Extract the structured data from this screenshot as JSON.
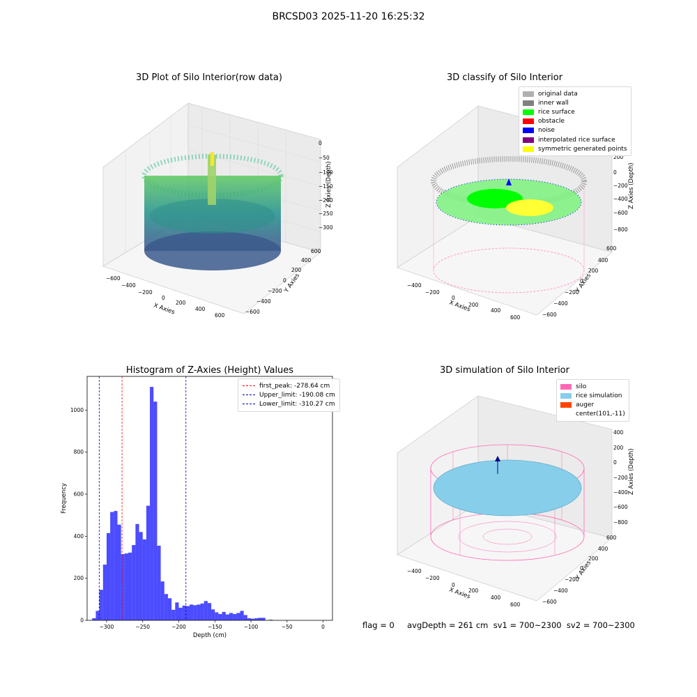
{
  "suptitle": "BRCSD03 2025-11-20 16:25:32",
  "plot1": {
    "title": "3D Plot of Silo Interior(row data)",
    "xlabel": "X Axies",
    "ylabel": "Y Axies",
    "zlabel": "Z Axies (Depth)",
    "xticks": [
      "−600",
      "−400",
      "−200",
      "0",
      "200",
      "400",
      "600"
    ],
    "yticks": [
      "−600",
      "−400",
      "−200",
      "0",
      "200",
      "400",
      "600"
    ],
    "zticks": [
      "0",
      "−50",
      "−100",
      "−150",
      "−200",
      "−250",
      "−300"
    ]
  },
  "plot2": {
    "title": "3D classify of Silo Interior",
    "xlabel": "X Axies",
    "ylabel": "Y Axies",
    "zlabel": "Z Axies (Depth)",
    "xticks": [
      "−400",
      "−200",
      "0",
      "200",
      "400",
      "600"
    ],
    "yticks": [
      "−600",
      "−400",
      "−200",
      "0",
      "200",
      "400",
      "600"
    ],
    "zticks": [
      "200",
      "0",
      "−200",
      "−400",
      "−600",
      "−800"
    ],
    "legend": [
      {
        "label": "original data",
        "color": "#b0b0b0"
      },
      {
        "label": "inner wall",
        "color": "#808080"
      },
      {
        "label": "rice surface",
        "color": "#00ff00"
      },
      {
        "label": "obstacle",
        "color": "#ff0000"
      },
      {
        "label": "noise",
        "color": "#0000ff"
      },
      {
        "label": "interpolated rice surface",
        "color": "#800080"
      },
      {
        "label": "symmetric generated points",
        "color": "#ffff00"
      }
    ]
  },
  "plot4": {
    "title": "3D simulation of Silo Interior",
    "xlabel": "X Axies",
    "ylabel": "Y Axies",
    "zlabel": "Z Axies (Depth)",
    "xticks": [
      "−400",
      "−200",
      "0",
      "200",
      "400",
      "600"
    ],
    "yticks": [
      "−600",
      "−400",
      "−200",
      "0",
      "200",
      "400",
      "600"
    ],
    "zticks": [
      "400",
      "200",
      "0",
      "−200",
      "−400",
      "−600",
      "−800"
    ],
    "legend": [
      {
        "label": "silo",
        "color": "#ff69b4"
      },
      {
        "label": "rice simulation",
        "color": "#87ceeb"
      },
      {
        "label": "auger",
        "color": "#ff4500"
      },
      {
        "label": "center(101,-11)",
        "color": ""
      }
    ]
  },
  "status": "flag = 0     avgDepth = 261 cm  sv1 = 700~2300  sv2 = 700~2300",
  "chart_data": [
    {
      "type": "bar",
      "title": "Histogram of Z-Axies (Height) Values",
      "xlabel": "Depth (cm)",
      "ylabel": "Frequency",
      "xlim": [
        -327,
        13
      ],
      "ylim": [
        0,
        1160
      ],
      "bin_width": 5,
      "bin_start": -320,
      "values": [
        10,
        45,
        145,
        265,
        415,
        515,
        520,
        455,
        315,
        318,
        322,
        358,
        458,
        420,
        385,
        545,
        1110,
        1040,
        355,
        185,
        125,
        105,
        50,
        85,
        60,
        70,
        68,
        75,
        72,
        75,
        80,
        92,
        82,
        52,
        38,
        30,
        40,
        28,
        35,
        30,
        35,
        45,
        25,
        10,
        8,
        10,
        12,
        12,
        0,
        3
      ],
      "bar_color": "#0000ff",
      "xticks": [
        -300,
        -250,
        -200,
        -150,
        -100,
        -50,
        0
      ],
      "xtick_labels": [
        "−300",
        "−250",
        "−200",
        "−150",
        "−100",
        "−50",
        "0"
      ],
      "yticks": [
        0,
        200,
        400,
        600,
        800,
        1000
      ],
      "yticks_labels": [
        "0",
        "200",
        "400",
        "600",
        "800",
        "1000"
      ],
      "lines": [
        {
          "label": "first_peak: -278.64 cm",
          "x": -278.64,
          "color": "#ff0000"
        },
        {
          "label": "Upper_limit: -190.08 cm",
          "x": -190.08,
          "color": "#0000aa"
        },
        {
          "label": "Lower_limit: -310.27 cm",
          "x": -310.27,
          "color": "#0000aa"
        }
      ],
      "legend_position": "top-right",
      "grid": false
    }
  ]
}
